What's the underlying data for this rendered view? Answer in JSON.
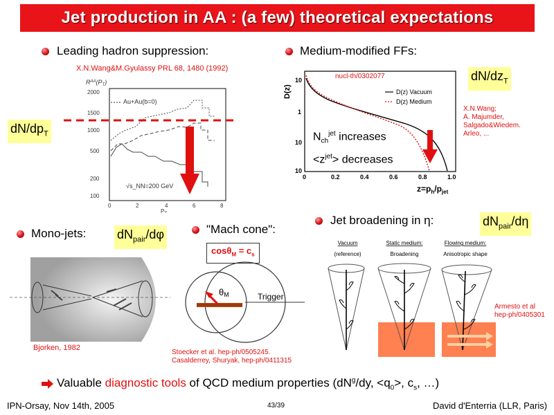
{
  "title": "Jet production in AA : (a few) theoretical expectations",
  "left_top": {
    "bullet": "Leading hadron suppression:",
    "ref": "X.N.Wang&M.Gyulassy PRL 68, 1480 (1992)",
    "badge_main": "dN/dp",
    "badge_sub": "T",
    "plot": {
      "ylabel": "R^{AA}(P_T)",
      "legend": "Au+Au(b=0)",
      "energy": "√s_NN=200 GeV",
      "xlabel": "P_T",
      "yticks": [
        "2000",
        "1500",
        "1000",
        "500",
        "200",
        "100"
      ],
      "xticks": [
        "0",
        "2",
        "4",
        "6",
        "8"
      ]
    }
  },
  "right_top": {
    "bullet": "Medium-modified FFs:",
    "badge_main": "dN/dz",
    "badge_sub": "T",
    "ref": "nucl-th/0302077",
    "authors": [
      "X.N.Wang;",
      "A. Majumder,",
      "Salgado&Wiedem.",
      "Arleo, ..."
    ],
    "plot": {
      "ylabel": "D(z)",
      "legend_vacuum": "D(z) Vacuum",
      "legend_medium": "D(z) Medium",
      "xticks": [
        "0",
        "0.2",
        "0.4",
        "0.6",
        "0.8",
        "1.0"
      ],
      "xlabel": "z=p_h/p_jet",
      "note1": "N_ch^jet increases",
      "note2": "<z^jet> decreases"
    }
  },
  "mono": {
    "bullet": "Mono-jets:",
    "badge_main": "dN",
    "badge_sub": "pair",
    "badge_tail": "/dφ",
    "ref": "Bjorken, 1982"
  },
  "mach": {
    "bullet": "\"Mach cone\":",
    "formula": "cosθ_M = c_s",
    "theta": "θ_M",
    "trigger": "Trigger",
    "refs": [
      "Stoecker et al. hep-ph/0505245.",
      "Casalderrey, Shuryak, hep-ph/0411315"
    ]
  },
  "broad": {
    "bullet": "Jet broadening in η:",
    "badge_main": "dN",
    "badge_sub": "pair",
    "badge_tail": "/dη",
    "panels": [
      {
        "title": "Vacuum",
        "sub": "(reference)"
      },
      {
        "title": "Static medium:",
        "sub": "Broadening"
      },
      {
        "title": "Flowing medium:",
        "sub": "Anisotropic shape"
      }
    ],
    "ref": [
      "Armesto et al",
      "hep-ph/0405301"
    ]
  },
  "bottom": {
    "pre": "Valuable ",
    "highlight": "diagnostic tools",
    "post": " of QCD medium properties (dN",
    "sup_g": "g",
    "post2": "/dy, <q",
    "sub_0": "0",
    "post3": ">, c",
    "sub_s": "s",
    "post4": ", …)"
  },
  "footer": {
    "left": "IPN-Orsay, Nov 14th, 2005",
    "center": "43/39",
    "right": "David d'Enterria (LLR, Paris)"
  },
  "colors": {
    "title_bg": "#e8141a",
    "highlight_bg": "#ffff99",
    "accent": "#e01010"
  }
}
